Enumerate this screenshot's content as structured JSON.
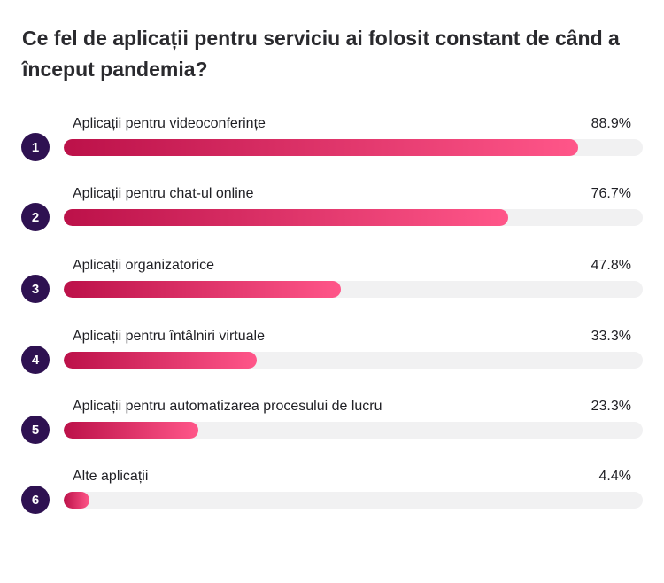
{
  "chart_data": {
    "type": "bar",
    "title": "Ce fel de aplicații pentru serviciu ai folosit constant de când a început pandemia?",
    "orientation": "horizontal",
    "xlim": [
      0,
      100
    ],
    "colors": {
      "bar_start": "#bc1149",
      "bar_end": "#ff5689",
      "track": "#f1f1f2",
      "badge": "#2e1151"
    },
    "items": [
      {
        "rank": "1",
        "label": "Aplicații pentru videoconferințe",
        "value": 88.9,
        "value_label": "88.9%"
      },
      {
        "rank": "2",
        "label": "Aplicații pentru chat-ul online",
        "value": 76.7,
        "value_label": "76.7%"
      },
      {
        "rank": "3",
        "label": "Aplicații organizatorice",
        "value": 47.8,
        "value_label": "47.8%"
      },
      {
        "rank": "4",
        "label": "Aplicații pentru întâlniri virtuale",
        "value": 33.3,
        "value_label": "33.3%"
      },
      {
        "rank": "5",
        "label": "Aplicații pentru automatizarea procesului de lucru",
        "value": 23.3,
        "value_label": "23.3%"
      },
      {
        "rank": "6",
        "label": "Alte aplicații",
        "value": 4.4,
        "value_label": "4.4%"
      }
    ]
  }
}
